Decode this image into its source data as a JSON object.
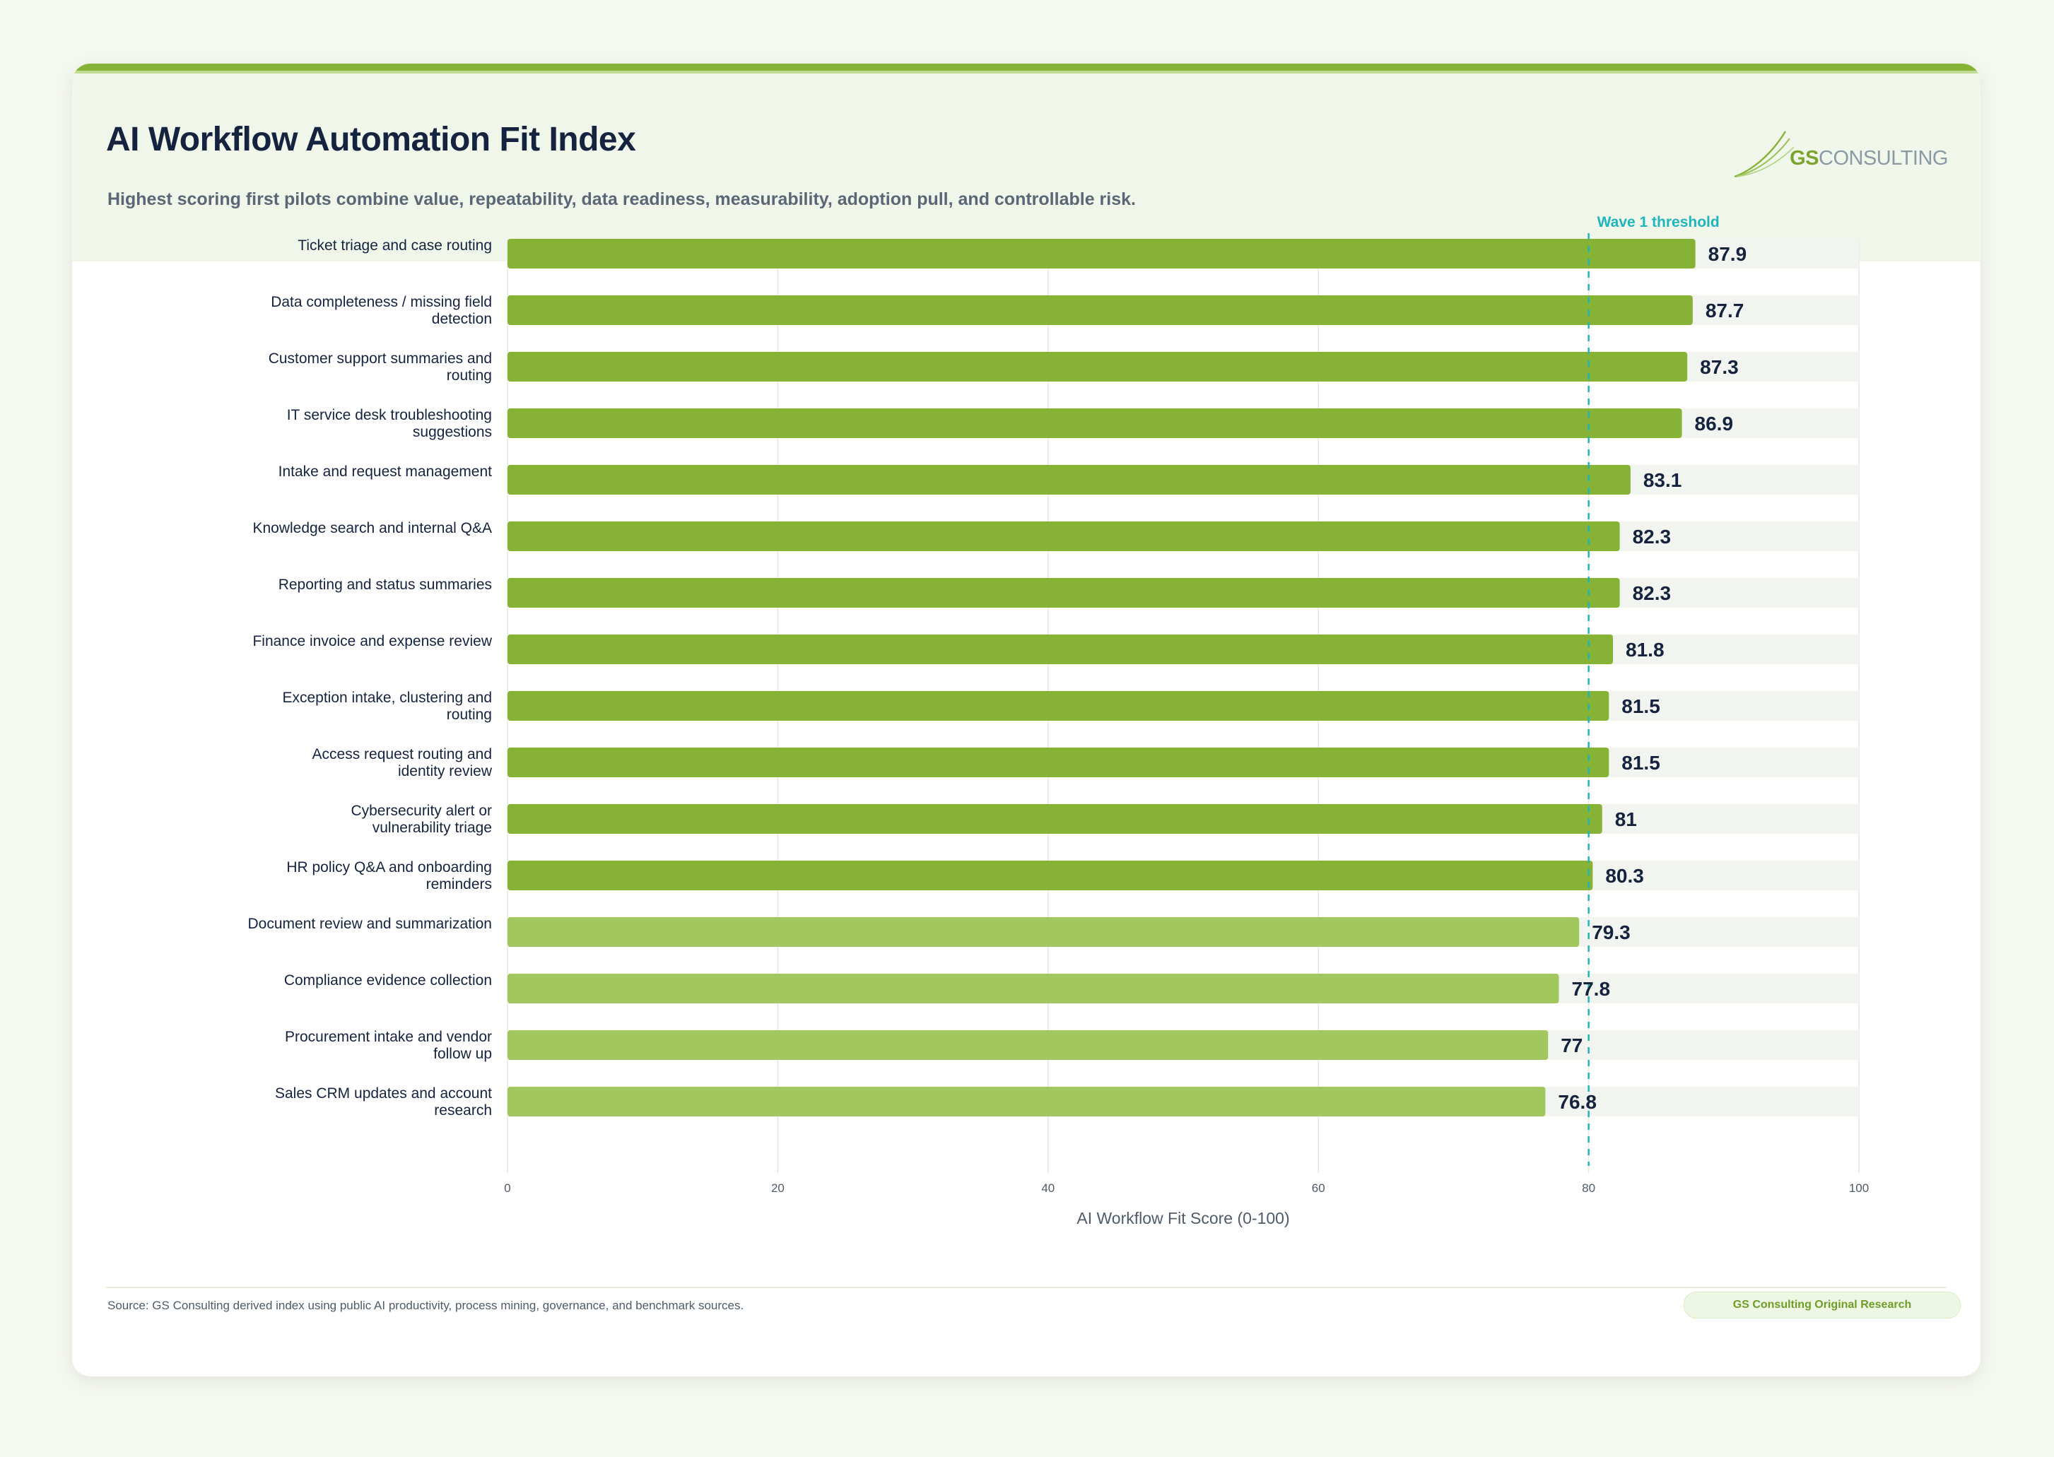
{
  "header": {
    "title": "AI Workflow Automation Fit Index",
    "subtitle": "Highest scoring first pilots combine value, repeatability, data readiness, measurability, adoption pull, and controllable risk."
  },
  "logo": {
    "brand_primary": "GS",
    "brand_secondary": "CONSULTING"
  },
  "chart_data": {
    "type": "bar",
    "orientation": "horizontal",
    "categories": [
      "Ticket triage and case routing",
      "Data completeness / missing field detection",
      "Customer support summaries and routing",
      "IT service desk troubleshooting suggestions",
      "Intake and request management",
      "Knowledge search and internal Q&A",
      "Reporting and status summaries",
      "Finance invoice and expense review",
      "Exception intake, clustering and routing",
      "Access request routing and identity review",
      "Cybersecurity alert or vulnerability triage",
      "HR policy Q&A and onboarding reminders",
      "Document review and summarization",
      "Compliance evidence collection",
      "Procurement intake and vendor follow up",
      "Sales CRM updates and account research"
    ],
    "values": [
      87.9,
      87.7,
      87.3,
      86.9,
      83.1,
      82.3,
      82.3,
      81.8,
      81.5,
      81.5,
      81,
      80.3,
      79.3,
      77.8,
      77,
      76.8
    ],
    "value_labels": [
      "87.9",
      "87.7",
      "87.3",
      "86.9",
      "83.1",
      "82.3",
      "82.3",
      "81.8",
      "81.5",
      "81.5",
      "81",
      "80.3",
      "79.3",
      "77.8",
      "77",
      "76.8"
    ],
    "xlabel": "AI Workflow Fit Score (0-100)",
    "xlim": [
      0,
      100
    ],
    "xticks": [
      "0",
      "20",
      "40",
      "60",
      "80",
      "100"
    ],
    "threshold": {
      "value": 80,
      "label": "Wave 1 threshold"
    },
    "grid": true,
    "colors": {
      "above_threshold": "#86b236",
      "below_threshold": "#a3c75f",
      "track": "#f2f5ef",
      "threshold_line": "#1eb5bb",
      "gridline": "#e3e8dd"
    }
  },
  "footer": {
    "source": "Source: GS Consulting derived index using public AI productivity, process mining, governance, and benchmark sources.",
    "badge": "GS Consulting Original Research"
  }
}
